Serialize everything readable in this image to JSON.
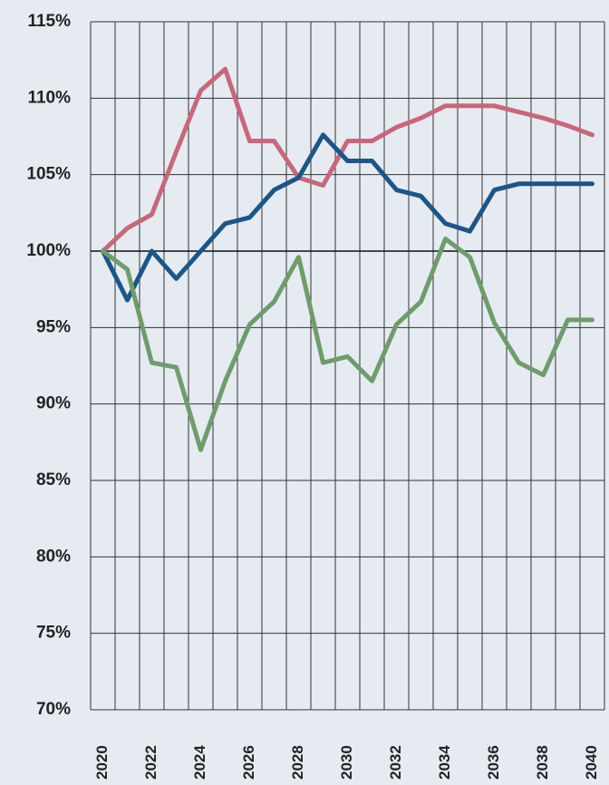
{
  "chart_data": {
    "type": "line",
    "categories": [
      "2020",
      null,
      "2022",
      null,
      "2024",
      null,
      "2026",
      null,
      "2028",
      null,
      "2030",
      null,
      "2032",
      null,
      "2034",
      null,
      "2036",
      null,
      "2038",
      null,
      "2040"
    ],
    "series": [
      {
        "color": "#c9677a",
        "values": [
          100,
          101.5,
          102.4,
          106.5,
          110.5,
          111.9,
          107.2,
          107.2,
          104.8,
          104.3,
          107.2,
          107.2,
          108.1,
          108.7,
          109.5,
          109.5,
          109.5,
          109.1,
          108.7,
          108.2,
          107.6
        ]
      },
      {
        "color": "#1b5688",
        "values": [
          100,
          96.8,
          100,
          98.2,
          100,
          101.8,
          102.2,
          104,
          104.8,
          107.6,
          105.9,
          105.9,
          104,
          103.6,
          101.8,
          101.3,
          104,
          104.4,
          104.4,
          104.4,
          104.4
        ]
      },
      {
        "color": "#6e9d6a",
        "values": [
          100,
          98.8,
          92.7,
          92.4,
          87,
          91.5,
          95.2,
          96.7,
          99.6,
          92.7,
          93.1,
          91.5,
          95.2,
          96.7,
          100.8,
          99.6,
          95.3,
          92.7,
          91.9,
          95.5,
          95.5
        ]
      }
    ],
    "ylim": [
      70,
      115
    ],
    "yticks": [
      {
        "value": 70,
        "label": "70%"
      },
      {
        "value": 75,
        "label": "75%"
      },
      {
        "value": 80,
        "label": "80%"
      },
      {
        "value": 85,
        "label": "85%"
      },
      {
        "value": 90,
        "label": "90%"
      },
      {
        "value": 95,
        "label": "95%"
      },
      {
        "value": 100,
        "label": "100%"
      },
      {
        "value": 105,
        "label": "105%"
      },
      {
        "value": 110,
        "label": "110%"
      },
      {
        "value": 115,
        "label": "115%"
      }
    ],
    "grid": true
  }
}
